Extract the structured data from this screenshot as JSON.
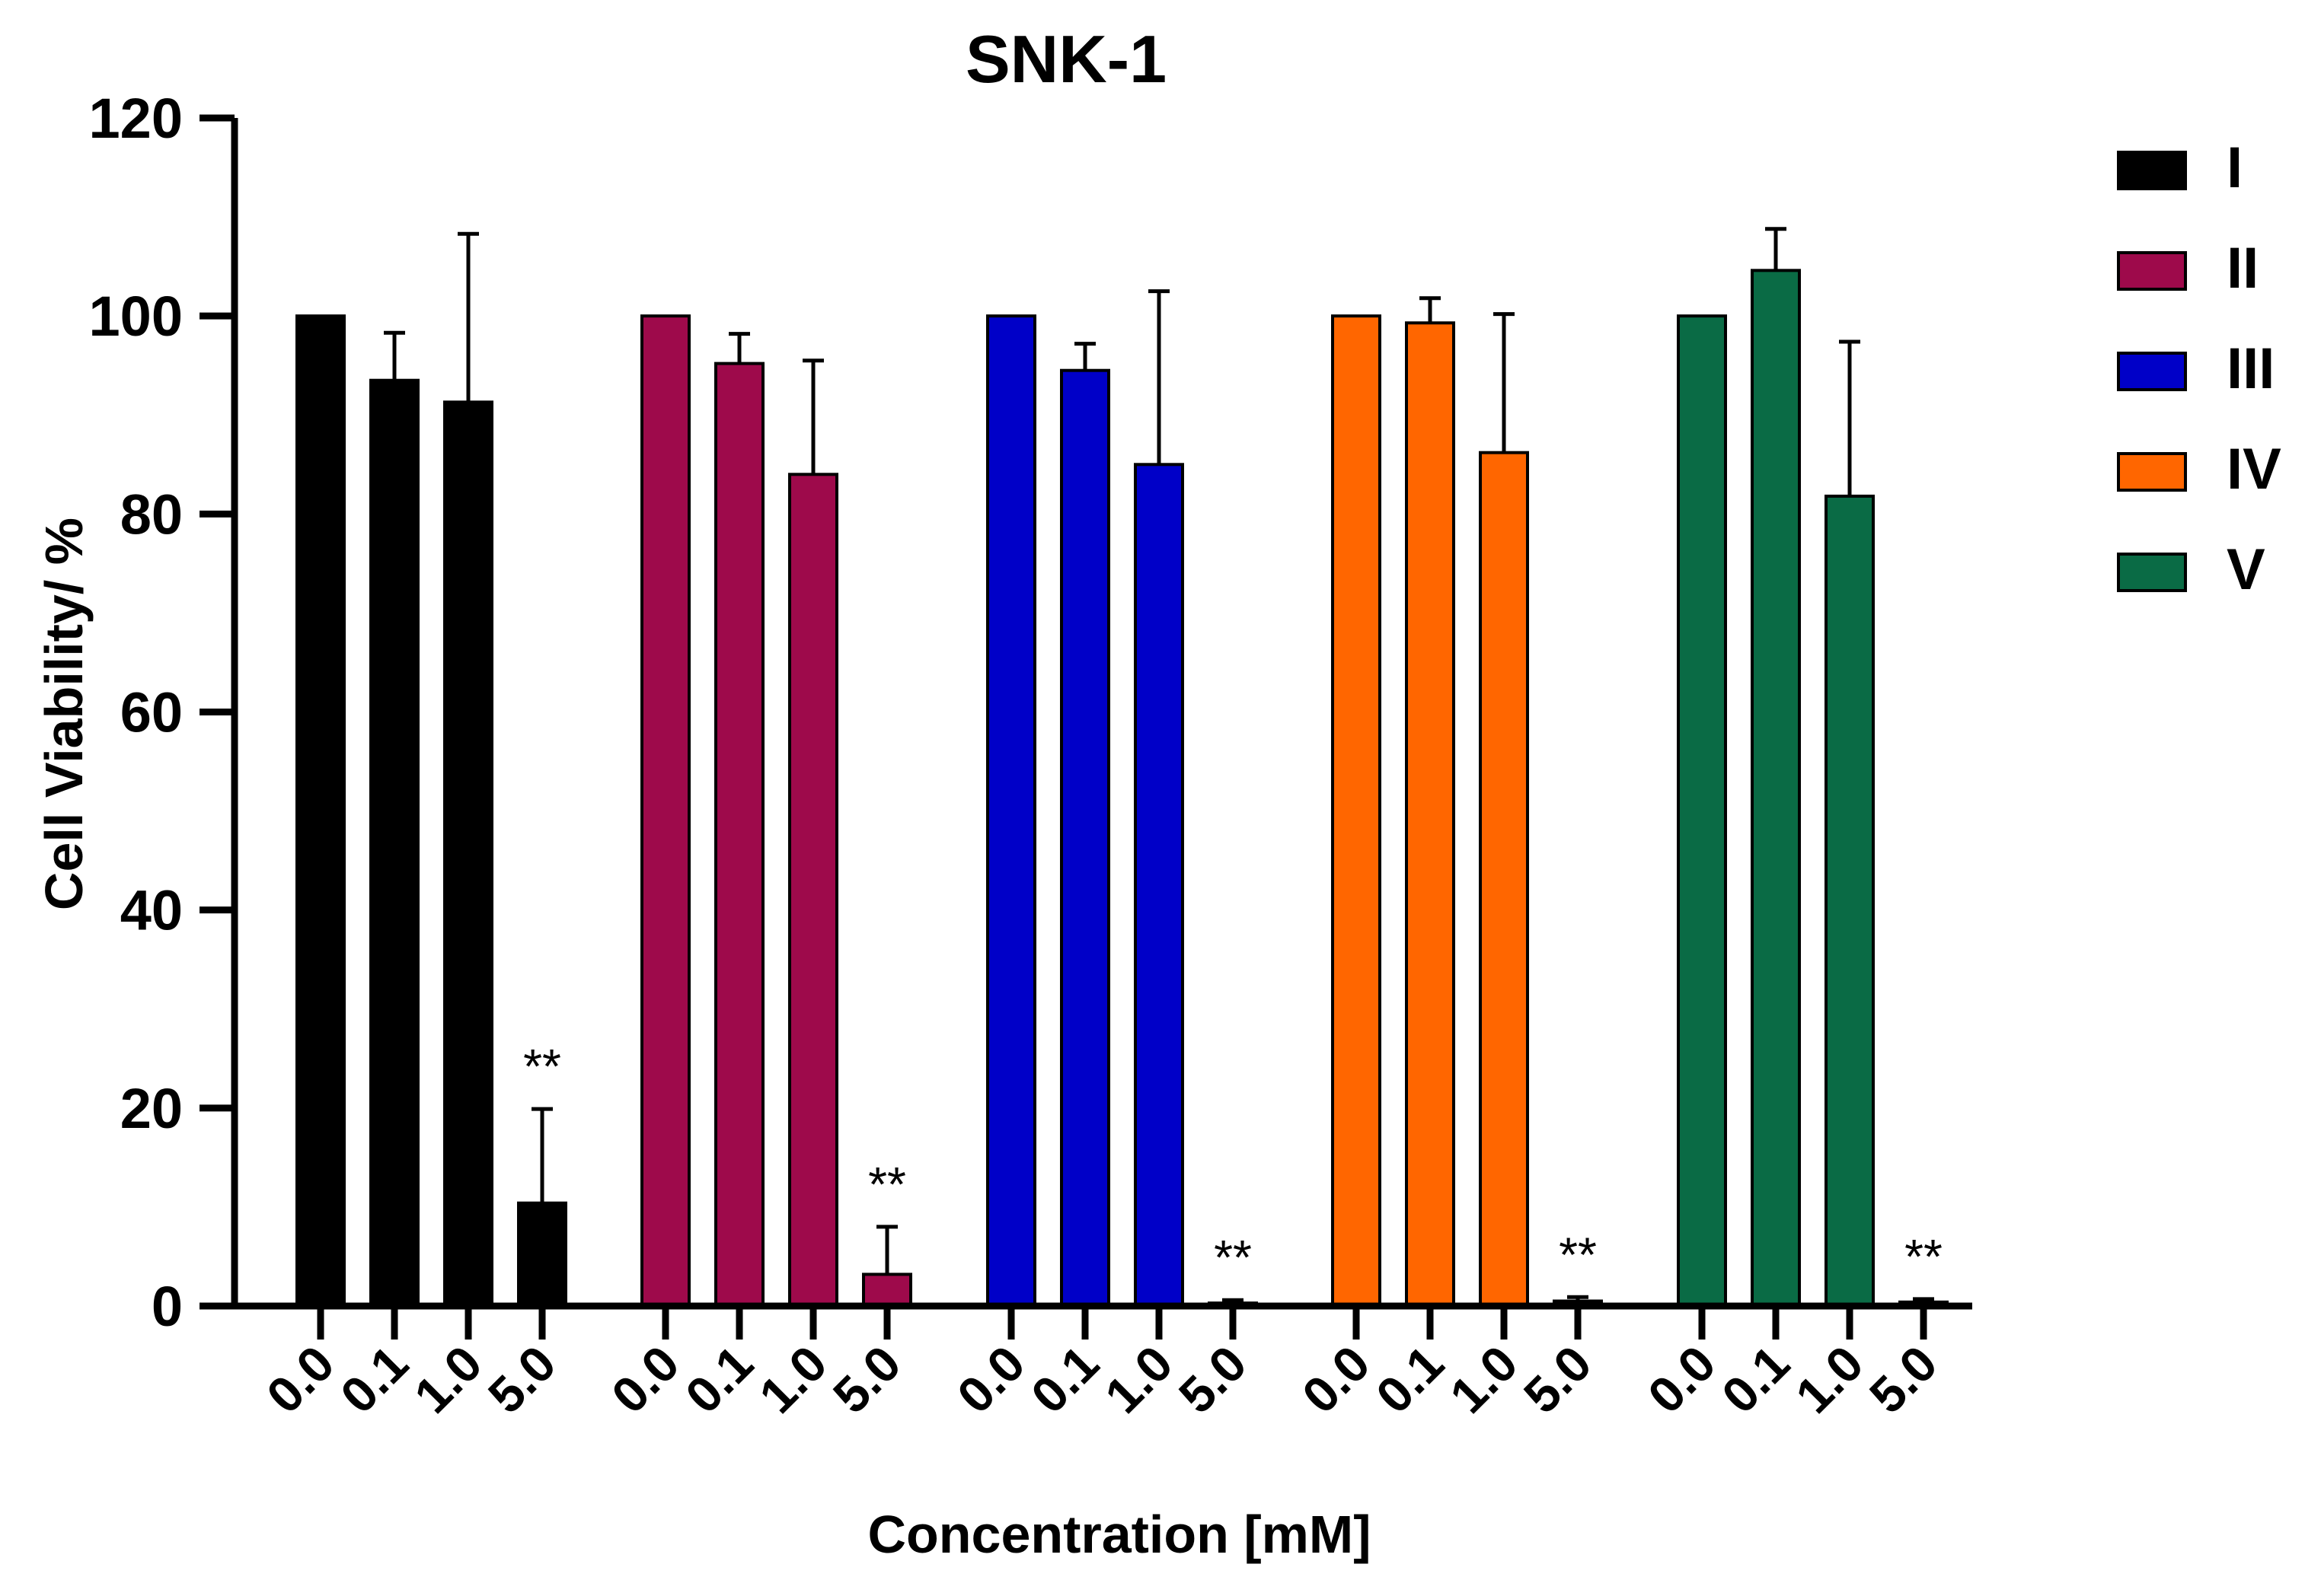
{
  "chart_data": {
    "type": "bar",
    "title": "SNK-1",
    "xlabel": "Concentration [mM]",
    "ylabel": "Cell Viability/ %",
    "ylim": [
      0,
      120
    ],
    "yticks": [
      "0",
      "20",
      "40",
      "60",
      "80",
      "100",
      "120"
    ],
    "categories": [
      "0.0",
      "0.1",
      "1.0",
      "5.0"
    ],
    "grid": false,
    "legend_position": "top-right",
    "significance_marker": "**",
    "series": [
      {
        "name": "I",
        "color": "#000000",
        "values": [
          100,
          93.5,
          91.3,
          10.4
        ],
        "errors": [
          0,
          4.8,
          17.0,
          9.5
        ],
        "significant": [
          false,
          false,
          false,
          true
        ]
      },
      {
        "name": "II",
        "color": "#9e0a4b",
        "values": [
          100,
          95.2,
          84.0,
          3.2
        ],
        "errors": [
          0,
          3.0,
          11.5,
          4.8
        ],
        "significant": [
          false,
          false,
          false,
          true
        ]
      },
      {
        "name": "III",
        "color": "#0000c8",
        "values": [
          100,
          94.5,
          85.0,
          0.3
        ],
        "errors": [
          0,
          2.7,
          17.5,
          0.3
        ],
        "significant": [
          false,
          false,
          false,
          true
        ]
      },
      {
        "name": "IV",
        "color": "#ff6600",
        "values": [
          100,
          99.3,
          86.2,
          0.5
        ],
        "errors": [
          0,
          2.5,
          14.0,
          0.4
        ],
        "significant": [
          false,
          false,
          false,
          true
        ]
      },
      {
        "name": "V",
        "color": "#0a6b45",
        "values": [
          100,
          104.6,
          81.8,
          0.4
        ],
        "errors": [
          0,
          4.2,
          15.6,
          0.3
        ],
        "significant": [
          false,
          false,
          false,
          true
        ]
      }
    ]
  }
}
